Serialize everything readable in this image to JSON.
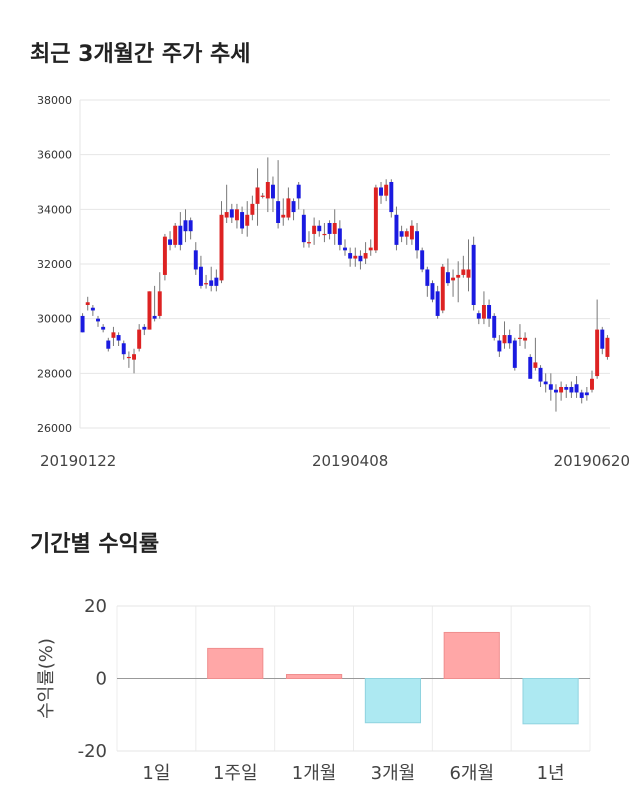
{
  "page": {
    "price_title": "최근 3개월간 주가 추세",
    "returns_title": "기간별 수익률"
  },
  "chart_data": [
    {
      "type": "candlestick",
      "title": "최근 3개월간 주가 추세",
      "ylim": [
        26000,
        38000
      ],
      "y_ticks": [
        26000,
        28000,
        30000,
        32000,
        34000,
        36000,
        38000
      ],
      "x_tick_labels": [
        "20190122",
        "20190408",
        "20190620"
      ],
      "x_tick_indices": [
        0,
        52,
        100
      ],
      "grid": true,
      "up_color": "#dd2222",
      "down_color": "#1a1ae0",
      "candles": [
        [
          30100,
          29500,
          30200,
          29500
        ],
        [
          30500,
          30600,
          30800,
          30300
        ],
        [
          30400,
          30300,
          30500,
          30100
        ],
        [
          30000,
          29900,
          30100,
          29700
        ],
        [
          29700,
          29600,
          29800,
          29500
        ],
        [
          29200,
          28900,
          29300,
          28800
        ],
        [
          29300,
          29500,
          29700,
          29000
        ],
        [
          29400,
          29200,
          29500,
          29000
        ],
        [
          29100,
          28700,
          29200,
          28500
        ],
        [
          28600,
          28600,
          28800,
          28200
        ],
        [
          28500,
          28700,
          28900,
          28000
        ],
        [
          28900,
          29600,
          29800,
          28800
        ],
        [
          29700,
          29600,
          29800,
          29400
        ],
        [
          29600,
          31000,
          31000,
          29600
        ],
        [
          30100,
          30000,
          31200,
          29900
        ],
        [
          30100,
          31000,
          31700,
          30000
        ],
        [
          31600,
          33000,
          33100,
          31400
        ],
        [
          32900,
          32700,
          33200,
          32500
        ],
        [
          32700,
          33400,
          33500,
          32600
        ],
        [
          33400,
          32700,
          33900,
          32500
        ],
        [
          33600,
          33200,
          34000,
          32800
        ],
        [
          33600,
          33200,
          33700,
          32900
        ],
        [
          32500,
          31800,
          32800,
          31600
        ],
        [
          31900,
          31200,
          32300,
          31100
        ],
        [
          31300,
          31300,
          31600,
          31100
        ],
        [
          31400,
          31200,
          31900,
          31000
        ],
        [
          31500,
          31200,
          31800,
          31000
        ],
        [
          31400,
          33800,
          34300,
          31300
        ],
        [
          33700,
          33900,
          34900,
          33500
        ],
        [
          34000,
          33700,
          34200,
          33500
        ],
        [
          33600,
          34000,
          34200,
          33300
        ],
        [
          33900,
          33300,
          34100,
          33100
        ],
        [
          33400,
          33800,
          34300,
          33000
        ],
        [
          33800,
          34200,
          34500,
          33600
        ],
        [
          34200,
          34800,
          35500,
          33400
        ],
        [
          34500,
          34500,
          34600,
          34400
        ],
        [
          34400,
          35000,
          35900,
          33900
        ],
        [
          34900,
          34400,
          35200,
          33900
        ],
        [
          34300,
          33500,
          35800,
          33300
        ],
        [
          33700,
          33800,
          34400,
          33400
        ],
        [
          33700,
          34400,
          34800,
          33600
        ],
        [
          34300,
          33900,
          34400,
          33600
        ],
        [
          34900,
          34400,
          35000,
          34000
        ],
        [
          33800,
          32800,
          34000,
          32600
        ],
        [
          32800,
          32800,
          33200,
          32600
        ],
        [
          33100,
          33400,
          33700,
          32700
        ],
        [
          33400,
          33200,
          33600,
          33000
        ],
        [
          33100,
          33100,
          33500,
          32800
        ],
        [
          33500,
          33100,
          33600,
          32900
        ],
        [
          33100,
          33500,
          34000,
          32700
        ],
        [
          33300,
          32700,
          33600,
          32500
        ],
        [
          32600,
          32500,
          32900,
          32300
        ],
        [
          32400,
          32200,
          32600,
          31900
        ],
        [
          32200,
          32300,
          32600,
          31900
        ],
        [
          32300,
          32100,
          32500,
          31800
        ],
        [
          32200,
          32400,
          32800,
          32000
        ],
        [
          32500,
          32600,
          32900,
          32300
        ],
        [
          32500,
          34800,
          34900,
          32400
        ],
        [
          34800,
          34500,
          35000,
          34200
        ],
        [
          34500,
          34900,
          35100,
          34300
        ],
        [
          35000,
          33900,
          35100,
          33700
        ],
        [
          33800,
          32700,
          34100,
          32500
        ],
        [
          33200,
          33000,
          33400,
          32800
        ],
        [
          33000,
          33200,
          33300,
          32700
        ],
        [
          32900,
          33400,
          33600,
          32700
        ],
        [
          33200,
          32500,
          33500,
          32200
        ],
        [
          32500,
          31800,
          32600,
          31700
        ],
        [
          31800,
          31200,
          31900,
          30800
        ],
        [
          31300,
          30700,
          31400,
          30600
        ],
        [
          31000,
          30100,
          31200,
          30000
        ],
        [
          30300,
          31900,
          32000,
          30200
        ],
        [
          31700,
          31300,
          32200,
          31200
        ],
        [
          31400,
          31500,
          31800,
          30800
        ],
        [
          31500,
          31600,
          32100,
          30600
        ],
        [
          31600,
          31800,
          32300,
          31500
        ],
        [
          31500,
          31800,
          32900,
          31000
        ],
        [
          32700,
          30500,
          33000,
          30300
        ],
        [
          30200,
          30000,
          30300,
          29800
        ],
        [
          30000,
          30500,
          31000,
          29800
        ],
        [
          30500,
          30000,
          30700,
          29700
        ],
        [
          30100,
          29300,
          30200,
          29200
        ],
        [
          29200,
          28800,
          29400,
          28600
        ],
        [
          29100,
          29400,
          29900,
          28900
        ],
        [
          29400,
          29100,
          29600,
          28900
        ],
        [
          29200,
          28200,
          29300,
          28100
        ],
        [
          29300,
          29300,
          29800,
          29000
        ],
        [
          29200,
          29300,
          29500,
          28900
        ],
        [
          28600,
          27800,
          28700,
          27800
        ],
        [
          28200,
          28400,
          29300,
          28100
        ],
        [
          28200,
          27700,
          28300,
          27500
        ],
        [
          27700,
          27600,
          28000,
          27300
        ],
        [
          27600,
          27400,
          28000,
          27000
        ],
        [
          27400,
          27300,
          27600,
          26600
        ],
        [
          27300,
          27500,
          27700,
          27000
        ],
        [
          27500,
          27400,
          27600,
          27100
        ],
        [
          27500,
          27300,
          27700,
          27100
        ],
        [
          27600,
          27300,
          27900,
          27100
        ],
        [
          27300,
          27100,
          27400,
          26900
        ],
        [
          27300,
          27200,
          27500,
          27000
        ],
        [
          27400,
          27800,
          28100,
          27300
        ],
        [
          27900,
          29600,
          30700,
          27800
        ],
        [
          29600,
          28900,
          29700,
          28700
        ],
        [
          28600,
          29300,
          29400,
          28500
        ]
      ]
    },
    {
      "type": "bar",
      "title": "기간별 수익률",
      "ylabel": "수익률(%)",
      "ylim": [
        -20,
        20
      ],
      "y_ticks": [
        -20,
        0,
        20
      ],
      "categories": [
        "1일",
        "1주일",
        "1개월",
        "3개월",
        "6개월",
        "1년"
      ],
      "values": [
        0,
        8.3,
        1.1,
        -12.2,
        12.7,
        -12.5
      ],
      "positive_color": "#ffa7a7",
      "negative_color": "#ade9f2",
      "grid": true
    }
  ]
}
